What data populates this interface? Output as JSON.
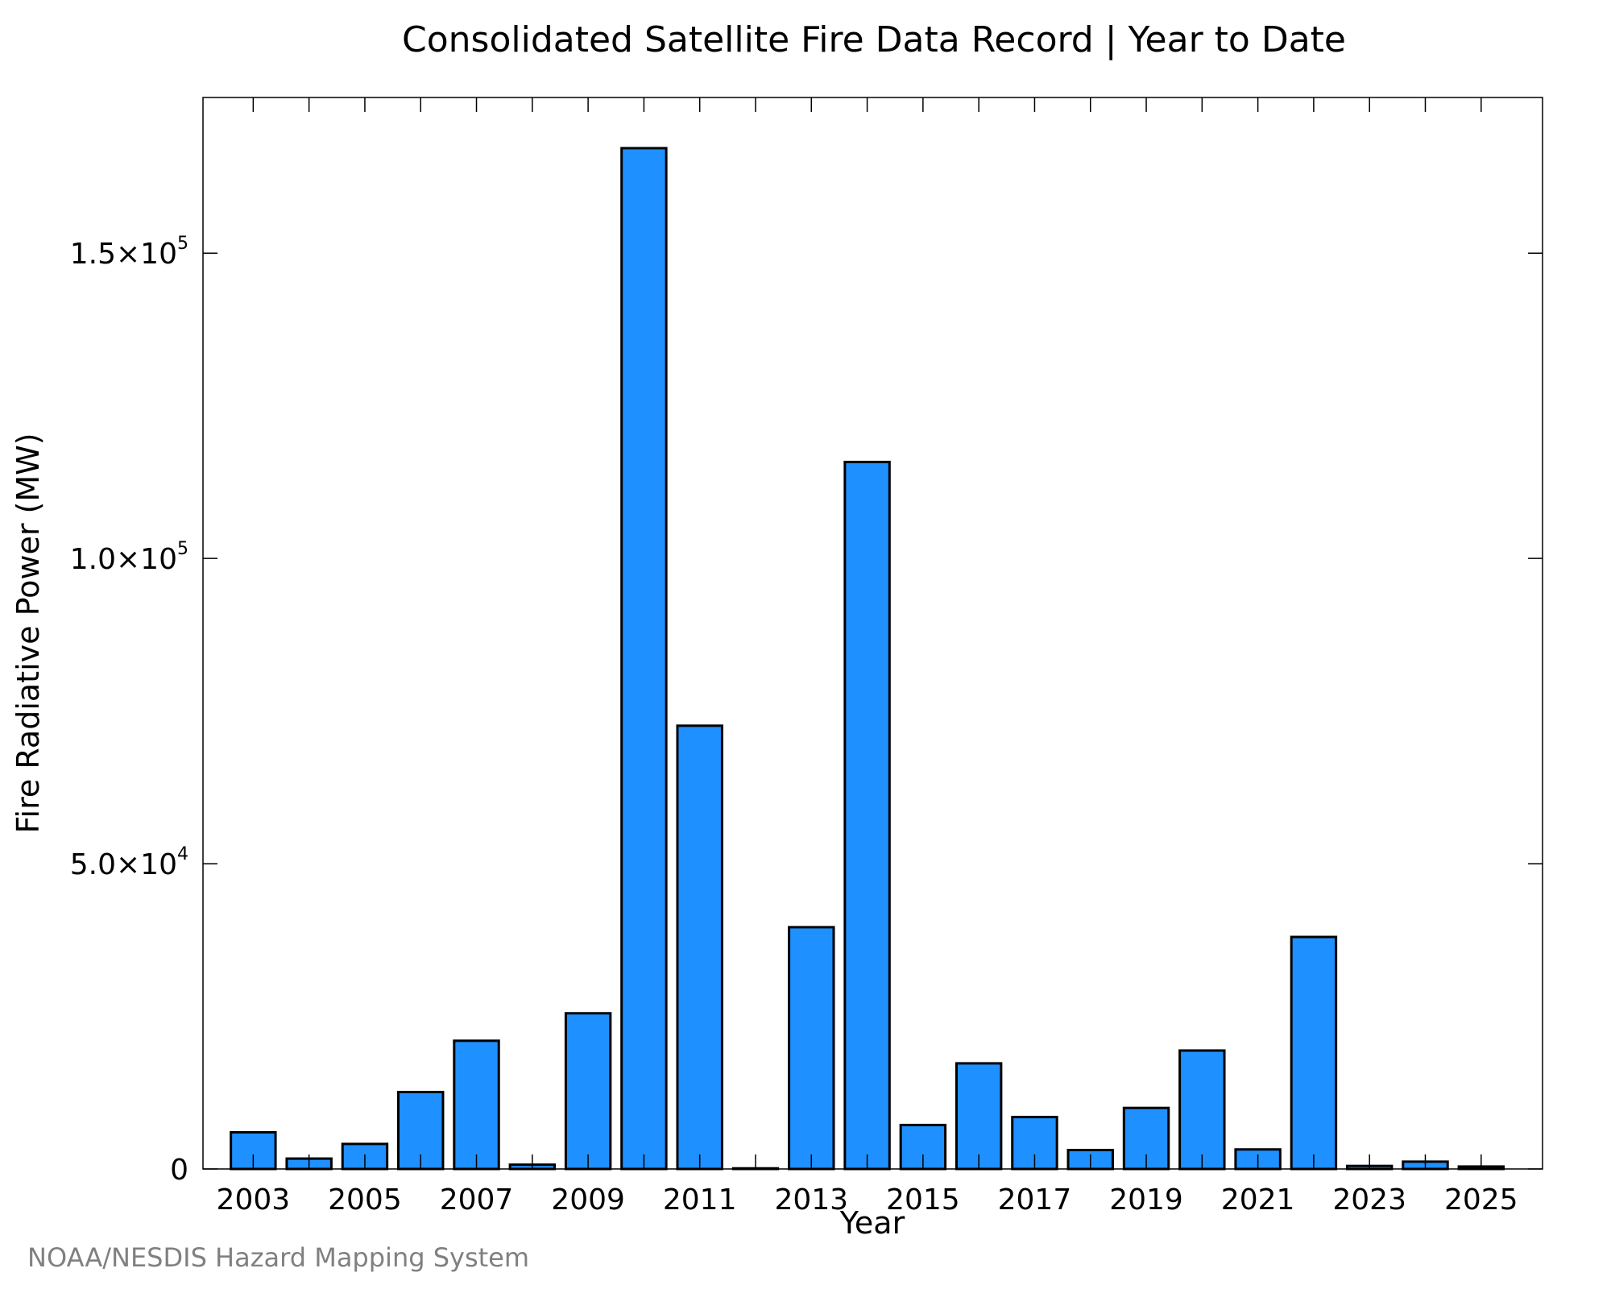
{
  "source_credit": "NOAA/NESDIS Hazard Mapping System",
  "colors": {
    "bar_fill": "#1e90ff",
    "bar_stroke": "#000000",
    "source_text": "#808080"
  },
  "chart_data": {
    "type": "bar",
    "title": "Consolidated Satellite Fire Data Record | Year to Date",
    "xlabel": "Year",
    "ylabel": "Fire Radiative Power (MW)",
    "ylim": [
      0,
      175500
    ],
    "xlim": [
      2002.1,
      2026.1
    ],
    "grid": false,
    "legend": "none",
    "categories": [
      2003,
      2004,
      2005,
      2006,
      2007,
      2008,
      2009,
      2010,
      2011,
      2012,
      2013,
      2014,
      2015,
      2016,
      2017,
      2018,
      2019,
      2020,
      2021,
      2022,
      2023,
      2024,
      2025
    ],
    "values": [
      6000,
      1700,
      4100,
      12600,
      21000,
      700,
      25500,
      167200,
      72600,
      100,
      39600,
      115800,
      7200,
      17300,
      8500,
      3100,
      10000,
      19400,
      3200,
      38000,
      500,
      1200,
      400
    ],
    "y_ticks": [
      {
        "value": 0,
        "mantissa": "0",
        "exponent": ""
      },
      {
        "value": 50000,
        "mantissa": "5.0×10",
        "exponent": "4"
      },
      {
        "value": 100000,
        "mantissa": "1.0×10",
        "exponent": "5"
      },
      {
        "value": 150000,
        "mantissa": "1.5×10",
        "exponent": "5"
      }
    ],
    "x_tick_labels": [
      2003,
      2005,
      2007,
      2009,
      2011,
      2013,
      2015,
      2017,
      2019,
      2021,
      2023,
      2025
    ]
  }
}
